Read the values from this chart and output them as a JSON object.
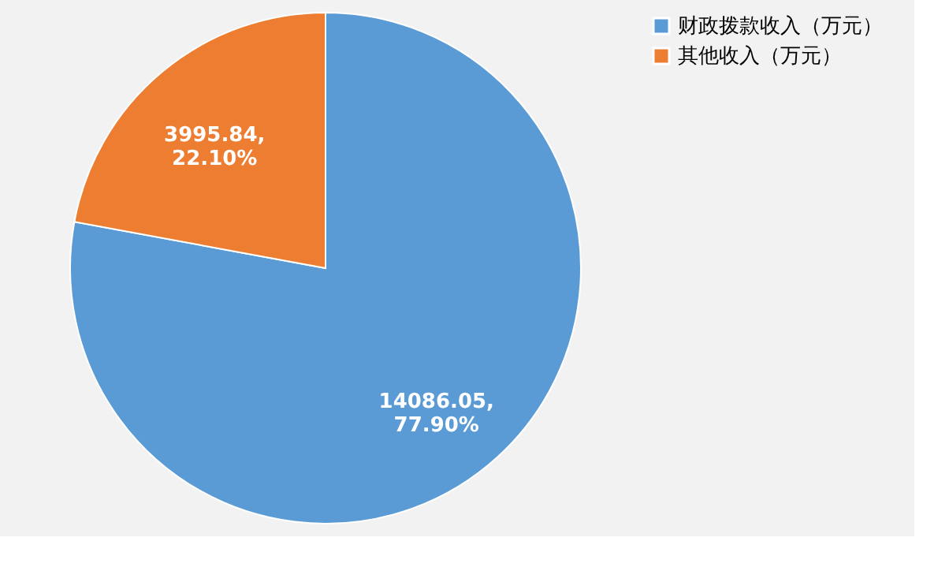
{
  "chart_data": {
    "type": "pie",
    "categories": [
      "财政拨款收入（万元）",
      "其他收入（万元）"
    ],
    "values": [
      14086.05,
      3995.84
    ],
    "colors": [
      "#5b9bd5",
      "#ed7d31"
    ],
    "value_labels": [
      "14086.05,\n77.90%",
      "3995.84,\n22.10%"
    ],
    "legend": "right"
  }
}
